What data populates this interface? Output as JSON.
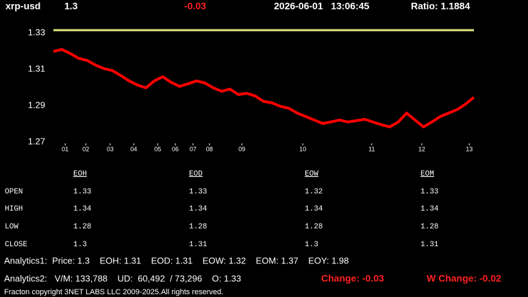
{
  "header": {
    "symbol": "xrp-usd",
    "price": 1.3,
    "change": -0.03,
    "datetime": "2026-06-01   13:06:45",
    "ratio": "Ratio: 1.1884"
  },
  "chart_data": {
    "type": "line",
    "x": [
      0,
      2,
      4,
      6,
      8,
      10,
      12,
      14,
      16,
      18,
      20,
      22,
      24,
      26,
      28,
      30,
      32,
      34,
      36,
      38,
      40,
      42,
      44,
      46,
      48,
      50,
      52,
      54,
      56,
      58,
      60,
      62,
      64,
      66,
      68,
      70,
      72,
      74,
      76,
      78,
      80,
      82,
      84,
      86,
      88,
      90,
      92,
      94,
      96,
      98,
      100
    ],
    "series": [
      {
        "color": "#ff0000",
        "values": [
          1.3198,
          1.3209,
          1.3187,
          1.316,
          1.3149,
          1.3123,
          1.3104,
          1.3093,
          1.3066,
          1.3036,
          1.3013,
          1.2998,
          1.3036,
          1.3059,
          1.3028,
          1.3006,
          1.302,
          1.3036,
          1.3025,
          1.2998,
          1.2979,
          1.2991,
          1.2961,
          1.2968,
          1.2953,
          1.2923,
          1.2915,
          1.2896,
          1.2885,
          1.2859,
          1.284,
          1.2821,
          1.2802,
          1.281,
          1.2821,
          1.281,
          1.2817,
          1.2825,
          1.281,
          1.2795,
          1.2783,
          1.281,
          1.2859,
          1.2821,
          1.2783,
          1.281,
          1.284,
          1.2859,
          1.2878,
          1.2908,
          1.2946
        ]
      }
    ],
    "reference_line": {
      "value": 1.3315,
      "color": "#e6e680"
    },
    "xlim": [
      0,
      100
    ],
    "xticks": [
      {
        "value": 2.8,
        "label": "01"
      },
      {
        "value": 7.7,
        "label": "02"
      },
      {
        "value": 13.5,
        "label": "03"
      },
      {
        "value": 19.1,
        "label": "04"
      },
      {
        "value": 24.8,
        "label": "05"
      },
      {
        "value": 29,
        "label": "06"
      },
      {
        "value": 33.2,
        "label": "07"
      },
      {
        "value": 37.1,
        "label": "08"
      },
      {
        "value": 44.8,
        "label": "09"
      },
      {
        "value": 59.3,
        "label": "10"
      },
      {
        "value": 75.7,
        "label": "11"
      },
      {
        "value": 87.6,
        "label": "12"
      },
      {
        "value": 98.9,
        "label": "13"
      }
    ],
    "ylim": [
      1.27,
      1.33
    ],
    "yticks": [
      1.27,
      1.29,
      1.31,
      1.33
    ]
  },
  "table": {
    "columns": [
      "EOH",
      "EOD",
      "EOW",
      "EOM"
    ],
    "rows": [
      {
        "label": "OPEN",
        "values": [
          1.33,
          1.33,
          1.32,
          1.33
        ]
      },
      {
        "label": "HIGH",
        "values": [
          1.34,
          1.34,
          1.34,
          1.34
        ]
      },
      {
        "label": "LOW",
        "values": [
          1.28,
          1.28,
          1.28,
          1.28
        ]
      },
      {
        "label": "CLOSE",
        "values": [
          1.3,
          1.31,
          1.3,
          1.31
        ]
      }
    ]
  },
  "analytics1": "Analytics1:  Price: 1.3    EOH: 1.31    EOD: 1.31    EOW: 1.32    EOM: 1.37    EOY: 1.98",
  "analytics2": "Analytics2:   V/M: 133,788    UD:  60,492  / 73,296    O: 1.33",
  "change": "Change: -0.03",
  "w_change": "W Change: -0.02",
  "footer": "Fracton copyright 3NET LABS LLC 2009-2025.All rights reserved."
}
